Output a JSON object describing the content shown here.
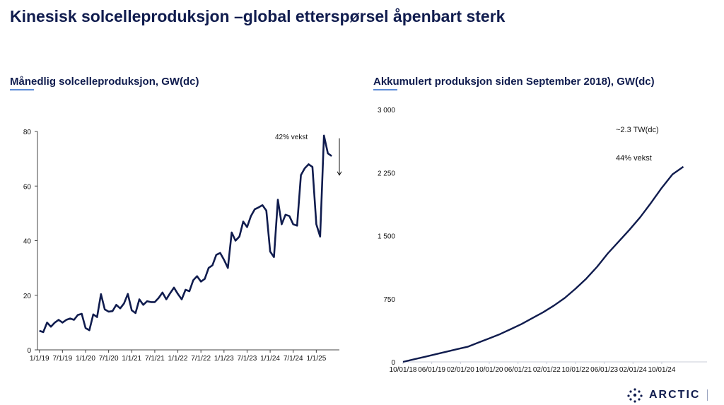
{
  "header": {
    "title": "Kinesisk solcelleproduksjon –global etterspørsel åpenbart sterk"
  },
  "brand": {
    "name": "ARCTIC",
    "logo_icon": "arctic-dot-logo"
  },
  "colors": {
    "navy": "#101c4e",
    "accent": "#5b8ad6"
  },
  "chart_data": [
    {
      "type": "line",
      "title": "Månedlig solcelleproduksjon, GW(dc)",
      "ylim": [
        0,
        80
      ],
      "yticks": [
        "0",
        "20",
        "40",
        "60",
        "80"
      ],
      "xticks": [
        {
          "label": "1/1/19",
          "t": 2019.0
        },
        {
          "label": "7/1/19",
          "t": 2019.5
        },
        {
          "label": "1/1/20",
          "t": 2020.0
        },
        {
          "label": "7/1/20",
          "t": 2020.5
        },
        {
          "label": "1/1/21",
          "t": 2021.0
        },
        {
          "label": "7/1/21",
          "t": 2021.5
        },
        {
          "label": "1/1/22",
          "t": 2022.0
        },
        {
          "label": "7/1/22",
          "t": 2022.5
        },
        {
          "label": "1/1/23",
          "t": 2023.0
        },
        {
          "label": "7/1/23",
          "t": 2023.5
        },
        {
          "label": "1/1/24",
          "t": 2024.0
        },
        {
          "label": "7/1/24",
          "t": 2024.5
        },
        {
          "label": "1/1/25",
          "t": 2025.0
        }
      ],
      "annotation": "42% vekst",
      "series": [
        {
          "x": [
            "2019-01",
            "2019-02",
            "2019-03",
            "2019-04",
            "2019-05",
            "2019-06",
            "2019-07",
            "2019-08",
            "2019-09",
            "2019-10",
            "2019-11",
            "2019-12",
            "2020-01",
            "2020-02",
            "2020-03",
            "2020-04",
            "2020-05",
            "2020-06",
            "2020-07",
            "2020-08",
            "2020-09",
            "2020-10",
            "2020-11",
            "2020-12",
            "2021-01",
            "2021-02",
            "2021-03",
            "2021-04",
            "2021-05",
            "2021-06",
            "2021-07",
            "2021-08",
            "2021-09",
            "2021-10",
            "2021-11",
            "2021-12",
            "2022-01",
            "2022-02",
            "2022-03",
            "2022-04",
            "2022-05",
            "2022-06",
            "2022-07",
            "2022-08",
            "2022-09",
            "2022-10",
            "2022-11",
            "2022-12",
            "2023-01",
            "2023-02",
            "2023-03",
            "2023-04",
            "2023-05",
            "2023-06",
            "2023-07",
            "2023-08",
            "2023-09",
            "2023-10",
            "2023-11",
            "2023-12",
            "2024-01",
            "2024-02",
            "2024-03",
            "2024-04",
            "2024-05",
            "2024-06",
            "2024-07",
            "2024-08",
            "2024-09",
            "2024-10",
            "2024-11",
            "2024-12",
            "2025-01",
            "2025-02",
            "2025-03",
            "2025-04",
            "2025-05"
          ],
          "values": [
            7,
            6.5,
            10,
            8.5,
            10,
            11,
            10,
            11,
            11.5,
            11,
            12.8,
            13.2,
            8,
            7.2,
            13,
            12,
            20.4,
            14.8,
            14,
            14.2,
            16.5,
            15.2,
            17,
            20.5,
            14.5,
            13.5,
            18.5,
            16.5,
            17.8,
            17.5,
            17.5,
            19,
            21,
            18.5,
            20.8,
            22.8,
            20.5,
            18.5,
            22,
            21.5,
            25.5,
            27,
            25,
            26,
            30,
            31,
            34.8,
            35.5,
            33,
            30,
            43,
            40,
            41.5,
            47,
            45,
            49,
            51.5,
            52.2,
            53,
            51,
            36,
            34,
            55,
            46,
            49.5,
            49,
            46,
            45.5,
            64,
            66.5,
            68,
            67,
            46,
            41.5,
            78.5,
            72,
            71
          ]
        }
      ]
    },
    {
      "type": "line",
      "title": "Akkumulert produksjon siden September 2018), GW(dc)",
      "ylim": [
        0,
        3000
      ],
      "yticks": [
        "0",
        "750",
        "1 500",
        "2 250",
        "3 000"
      ],
      "xticks": [
        {
          "label": "10/01/18",
          "t": 2018.75
        },
        {
          "label": "06/01/19",
          "t": 2019.4167
        },
        {
          "label": "02/01/20",
          "t": 2020.0833
        },
        {
          "label": "10/01/20",
          "t": 2020.75
        },
        {
          "label": "06/01/21",
          "t": 2021.4167
        },
        {
          "label": "02/01/22",
          "t": 2022.0833
        },
        {
          "label": "10/01/22",
          "t": 2022.75
        },
        {
          "label": "06/01/23",
          "t": 2023.4167
        },
        {
          "label": "02/01/24",
          "t": 2024.0833
        },
        {
          "label": "10/01/24",
          "t": 2024.75
        }
      ],
      "annotations": [
        "~2.3 TW(dc)",
        "44% vekst"
      ],
      "series": [
        {
          "x": [
            "2018-10",
            "2019-01",
            "2019-04",
            "2019-07",
            "2019-10",
            "2020-01",
            "2020-04",
            "2020-07",
            "2020-10",
            "2021-01",
            "2021-04",
            "2021-07",
            "2021-10",
            "2022-01",
            "2022-04",
            "2022-07",
            "2022-10",
            "2023-01",
            "2023-04",
            "2023-07",
            "2023-10",
            "2024-01",
            "2024-04",
            "2024-07",
            "2024-10",
            "2025-01",
            "2025-04"
          ],
          "values": [
            0,
            30,
            60,
            90,
            120,
            150,
            180,
            230,
            280,
            330,
            390,
            450,
            520,
            590,
            670,
            760,
            870,
            990,
            1130,
            1290,
            1430,
            1570,
            1720,
            1890,
            2070,
            2230,
            2320
          ]
        }
      ]
    }
  ]
}
